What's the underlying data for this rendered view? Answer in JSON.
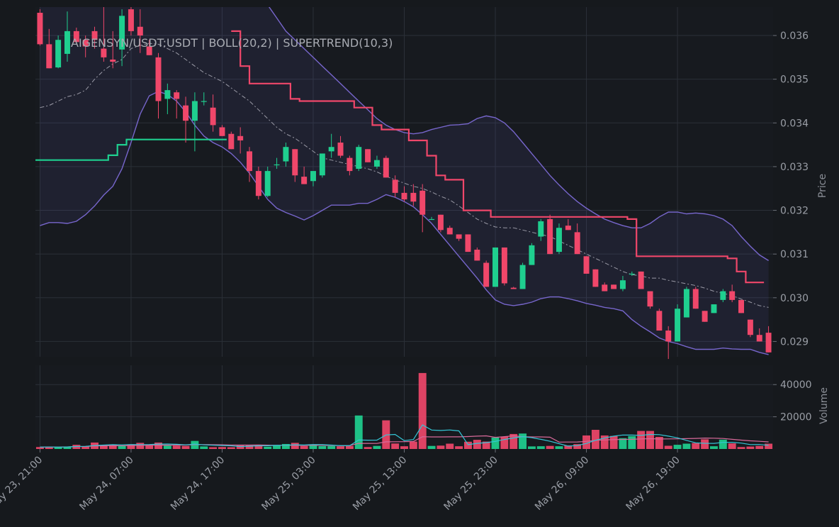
{
  "chart_data": {
    "type": "candlestick",
    "title": "AIGENSYN/USDT:USDT | BOLL(20,2) | SUPERTREND(10,3)",
    "price_axis_label": "Price",
    "volume_axis_label": "Volume",
    "price_ylim": [
      0.02865,
      0.03665
    ],
    "volume_ylim": [
      0,
      52000
    ],
    "price_ticks": [
      "0.029",
      "0.030",
      "0.031",
      "0.032",
      "0.033",
      "0.034",
      "0.035",
      "0.036"
    ],
    "volume_ticks": [
      "20000",
      "40000"
    ],
    "x_tick_labels": [
      "May 23, 21:00",
      "May 24, 07:00",
      "May 24, 17:00",
      "May 25, 03:00",
      "May 25, 13:00",
      "May 25, 23:00",
      "May 26, 09:00",
      "May 26, 19:00"
    ],
    "interval": "1h",
    "grid": true,
    "colors": {
      "up": "#1fcf8f",
      "down": "#f0476a",
      "boll_band": "#7766cc",
      "boll_mid": "#9a9aa6",
      "supertrend_up": "#1fcf8f",
      "supertrend_down": "#f0476a",
      "vol_ma1": "#34c6d6",
      "vol_ma2": "#d86a9a"
    },
    "candles": [
      [
        0.03652,
        0.0366,
        0.03577,
        0.0358
      ],
      [
        0.0358,
        0.03615,
        0.03525,
        0.03525
      ],
      [
        0.03527,
        0.036,
        0.03525,
        0.0359
      ],
      [
        0.03558,
        0.03655,
        0.0354,
        0.0361
      ],
      [
        0.0361,
        0.03618,
        0.03585,
        0.03585
      ],
      [
        0.0359,
        0.036,
        0.0355,
        0.03575
      ],
      [
        0.0361,
        0.0362,
        0.0357,
        0.0359
      ],
      [
        0.0357,
        0.03665,
        0.0354,
        0.0355
      ],
      [
        0.03545,
        0.0361,
        0.03525,
        0.0354
      ],
      [
        0.03568,
        0.0366,
        0.0353,
        0.03645
      ],
      [
        0.0366,
        0.03665,
        0.036,
        0.0361
      ],
      [
        0.0362,
        0.0366,
        0.0356,
        0.036
      ],
      [
        0.03575,
        0.0359,
        0.03555,
        0.03555
      ],
      [
        0.0355,
        0.0356,
        0.0341,
        0.0345
      ],
      [
        0.03455,
        0.0349,
        0.0342,
        0.03475
      ],
      [
        0.0347,
        0.03475,
        0.0341,
        0.03455
      ],
      [
        0.0344,
        0.0346,
        0.03355,
        0.03405
      ],
      [
        0.03405,
        0.0347,
        0.03335,
        0.0345
      ],
      [
        0.0345,
        0.0347,
        0.0344,
        0.0345
      ],
      [
        0.03435,
        0.03465,
        0.0338,
        0.03395
      ],
      [
        0.0339,
        0.03395,
        0.0337,
        0.0337
      ],
      [
        0.03375,
        0.0338,
        0.0334,
        0.0334
      ],
      [
        0.0337,
        0.0339,
        0.0333,
        0.0336
      ],
      [
        0.03335,
        0.03345,
        0.03265,
        0.0329
      ],
      [
        0.0329,
        0.033,
        0.03225,
        0.03233
      ],
      [
        0.03233,
        0.033,
        0.0323,
        0.0329
      ],
      [
        0.03305,
        0.0332,
        0.03295,
        0.03305
      ],
      [
        0.03312,
        0.03355,
        0.033,
        0.03345
      ],
      [
        0.0334,
        0.0334,
        0.03265,
        0.0328
      ],
      [
        0.03277,
        0.033,
        0.0326,
        0.0326
      ],
      [
        0.03267,
        0.0329,
        0.03255,
        0.0329
      ],
      [
        0.0328,
        0.0333,
        0.03275,
        0.0333
      ],
      [
        0.03335,
        0.03375,
        0.0332,
        0.03345
      ],
      [
        0.03355,
        0.0337,
        0.0332,
        0.03325
      ],
      [
        0.0332,
        0.03325,
        0.0328,
        0.0329
      ],
      [
        0.03295,
        0.0335,
        0.0329,
        0.03345
      ],
      [
        0.0334,
        0.0334,
        0.0331,
        0.0331
      ],
      [
        0.033,
        0.03325,
        0.03295,
        0.03315
      ],
      [
        0.0332,
        0.03325,
        0.03275,
        0.03275
      ],
      [
        0.0327,
        0.0328,
        0.0323,
        0.0324
      ],
      [
        0.0324,
        0.03255,
        0.0322,
        0.03225
      ],
      [
        0.0324,
        0.0326,
        0.0321,
        0.0322
      ],
      [
        0.03245,
        0.0326,
        0.0315,
        0.0319
      ],
      [
        0.0318,
        0.03185,
        0.0318,
        0.0318
      ],
      [
        0.0319,
        0.0319,
        0.0315,
        0.03155
      ],
      [
        0.0316,
        0.03165,
        0.03145,
        0.03145
      ],
      [
        0.03145,
        0.03145,
        0.0313,
        0.03135
      ],
      [
        0.03145,
        0.03145,
        0.03105,
        0.03105
      ],
      [
        0.0311,
        0.03115,
        0.03085,
        0.03085
      ],
      [
        0.0308,
        0.03085,
        0.03025,
        0.03025
      ],
      [
        0.03025,
        0.03115,
        0.03025,
        0.03115
      ],
      [
        0.03115,
        0.03115,
        0.03028,
        0.03033
      ],
      [
        0.03023,
        0.03025,
        0.0302,
        0.0302
      ],
      [
        0.0302,
        0.0308,
        0.0302,
        0.03075
      ],
      [
        0.03075,
        0.03125,
        0.03075,
        0.0312
      ],
      [
        0.0314,
        0.0318,
        0.0313,
        0.03175
      ],
      [
        0.0318,
        0.0319,
        0.031,
        0.031
      ],
      [
        0.03105,
        0.0317,
        0.031,
        0.0316
      ],
      [
        0.03165,
        0.0318,
        0.03155,
        0.03155
      ],
      [
        0.0315,
        0.0317,
        0.031,
        0.031
      ],
      [
        0.03095,
        0.03095,
        0.03055,
        0.03055
      ],
      [
        0.03065,
        0.03065,
        0.03025,
        0.03025
      ],
      [
        0.0303,
        0.03035,
        0.03015,
        0.03015
      ],
      [
        0.0303,
        0.0303,
        0.0302,
        0.0302
      ],
      [
        0.0302,
        0.0305,
        0.03015,
        0.0304
      ],
      [
        0.03055,
        0.0306,
        0.0305,
        0.03055
      ],
      [
        0.0306,
        0.0306,
        0.0302,
        0.0302
      ],
      [
        0.03015,
        0.03015,
        0.02975,
        0.0298
      ],
      [
        0.0297,
        0.02975,
        0.02925,
        0.02925
      ],
      [
        0.02925,
        0.02935,
        0.0286,
        0.029
      ],
      [
        0.029,
        0.02985,
        0.029,
        0.02975
      ],
      [
        0.02955,
        0.03025,
        0.02955,
        0.0302
      ],
      [
        0.0302,
        0.03025,
        0.02975,
        0.02975
      ],
      [
        0.0297,
        0.0297,
        0.02945,
        0.02945
      ],
      [
        0.02965,
        0.02985,
        0.02965,
        0.02985
      ],
      [
        0.02995,
        0.0302,
        0.0299,
        0.03015
      ],
      [
        0.03015,
        0.0303,
        0.0299,
        0.02995
      ],
      [
        0.02995,
        0.02995,
        0.02965,
        0.02965
      ],
      [
        0.0295,
        0.0295,
        0.0291,
        0.02915
      ],
      [
        0.02915,
        0.0293,
        0.029,
        0.029
      ],
      [
        0.0292,
        0.02935,
        0.02875,
        0.02875
      ]
    ],
    "volumes": [
      1200,
      1300,
      1100,
      1500,
      2600,
      1700,
      4000,
      2400,
      2700,
      1900,
      2900,
      3800,
      2600,
      4000,
      2100,
      2100,
      1900,
      5000,
      1600,
      1100,
      1200,
      1100,
      2600,
      2600,
      2500,
      1400,
      2100,
      3100,
      3800,
      1900,
      2900,
      1800,
      1800,
      1700,
      1900,
      20800,
      1200,
      1900,
      17800,
      3400,
      1700,
      4600,
      47200,
      1900,
      2100,
      3300,
      1700,
      4500,
      5700,
      4600,
      7100,
      7700,
      9300,
      9600,
      1600,
      1700,
      1900,
      1700,
      2200,
      3000,
      8400,
      11900,
      8400,
      8100,
      6700,
      8000,
      11200,
      11200,
      7500,
      2000,
      2600,
      3300,
      3700,
      6000,
      1700,
      5800,
      3500,
      1200,
      1500,
      1900,
      3300
    ],
    "boll_mid": [
      0.03435,
      0.0344,
      0.0345,
      0.0346,
      0.03465,
      0.03475,
      0.035,
      0.0352,
      0.03535,
      0.03545,
      0.0357,
      0.03577,
      0.03582,
      0.0358,
      0.0357,
      0.0356,
      0.03545,
      0.0353,
      0.03515,
      0.03505,
      0.03495,
      0.0348,
      0.03465,
      0.0345,
      0.0343,
      0.0341,
      0.0339,
      0.03375,
      0.03365,
      0.0335,
      0.03335,
      0.0332,
      0.03315,
      0.0331,
      0.03305,
      0.033,
      0.03295,
      0.03288,
      0.03278,
      0.0327,
      0.03262,
      0.03255,
      0.0325,
      0.03242,
      0.03232,
      0.03224,
      0.0321,
      0.03195,
      0.0318,
      0.0317,
      0.03162,
      0.0316,
      0.0316,
      0.03155,
      0.0315,
      0.03145,
      0.0314,
      0.0313,
      0.0312,
      0.0311,
      0.031,
      0.0309,
      0.0308,
      0.0307,
      0.0306,
      0.03053,
      0.0305,
      0.03045,
      0.03045,
      0.0304,
      0.03036,
      0.03032,
      0.03028,
      0.03022,
      0.03015,
      0.0301,
      0.03005,
      0.02997,
      0.0299,
      0.02982,
      0.02978
    ],
    "boll_upper": [
      0.03795,
      0.0381,
      0.0383,
      0.0385,
      0.0387,
      0.0389,
      0.03905,
      0.03915,
      0.0392,
      0.03925,
      0.03928,
      0.0393,
      0.03932,
      0.0393,
      0.0391,
      0.0389,
      0.0387,
      0.0385,
      0.0383,
      0.0381,
      0.0379,
      0.0377,
      0.0375,
      0.0373,
      0.037,
      0.0367,
      0.0364,
      0.0361,
      0.0359,
      0.0357,
      0.0355,
      0.0353,
      0.0351,
      0.0349,
      0.0347,
      0.0345,
      0.0343,
      0.0341,
      0.03395,
      0.03385,
      0.03378,
      0.03375,
      0.03378,
      0.03385,
      0.0339,
      0.03395,
      0.03396,
      0.03398,
      0.0341,
      0.03416,
      0.03412,
      0.034,
      0.0338,
      0.03355,
      0.0333,
      0.03305,
      0.0328,
      0.03258,
      0.03238,
      0.0322,
      0.03205,
      0.03192,
      0.0318,
      0.03172,
      0.03165,
      0.0316,
      0.0316,
      0.0317,
      0.03185,
      0.03196,
      0.03196,
      0.03192,
      0.03194,
      0.03192,
      0.03188,
      0.0318,
      0.03165,
      0.0314,
      0.03118,
      0.03098,
      0.03085
    ],
    "boll_lower": [
      0.03165,
      0.03172,
      0.03172,
      0.0317,
      0.03175,
      0.0319,
      0.0321,
      0.03235,
      0.03255,
      0.03295,
      0.03355,
      0.0342,
      0.03462,
      0.03472,
      0.03465,
      0.0345,
      0.03425,
      0.03395,
      0.0337,
      0.03355,
      0.03345,
      0.0333,
      0.0331,
      0.03285,
      0.03255,
      0.03225,
      0.03205,
      0.03195,
      0.03187,
      0.03178,
      0.03188,
      0.032,
      0.03212,
      0.03212,
      0.03212,
      0.03216,
      0.03216,
      0.03225,
      0.03236,
      0.0323,
      0.0322,
      0.03208,
      0.0319,
      0.0317,
      0.03145,
      0.0312,
      0.03095,
      0.0307,
      0.03045,
      0.03018,
      0.02995,
      0.02985,
      0.02982,
      0.02985,
      0.0299,
      0.02998,
      0.03002,
      0.03002,
      0.02998,
      0.02993,
      0.02987,
      0.02983,
      0.02978,
      0.02975,
      0.0297,
      0.0295,
      0.02935,
      0.02922,
      0.02908,
      0.029,
      0.02895,
      0.02888,
      0.02882,
      0.02882,
      0.02882,
      0.02885,
      0.02883,
      0.02882,
      0.02882,
      0.02875,
      0.0287
    ],
    "supertrend": [
      {
        "direction": "up",
        "points": [
          [
            0,
            0.03315
          ],
          [
            8,
            0.03315
          ],
          [
            8,
            0.03326
          ],
          [
            9,
            0.03326
          ],
          [
            9,
            0.0335
          ],
          [
            10,
            0.0335
          ],
          [
            10,
            0.03362
          ],
          [
            21,
            0.03362
          ]
        ]
      },
      {
        "direction": "down",
        "points": [
          [
            21.5,
            0.0361
          ],
          [
            22.5,
            0.0361
          ],
          [
            22.5,
            0.0353
          ],
          [
            23.5,
            0.0353
          ],
          [
            23.5,
            0.0349
          ],
          [
            28,
            0.0349
          ],
          [
            28,
            0.03455
          ],
          [
            29,
            0.03455
          ],
          [
            29,
            0.0345
          ],
          [
            35,
            0.0345
          ],
          [
            35,
            0.03435
          ],
          [
            37,
            0.03435
          ],
          [
            37,
            0.03395
          ],
          [
            38,
            0.03395
          ],
          [
            38,
            0.03385
          ],
          [
            41,
            0.03385
          ],
          [
            41,
            0.0336
          ],
          [
            43,
            0.0336
          ],
          [
            43,
            0.03325
          ],
          [
            44,
            0.03325
          ],
          [
            44,
            0.0328
          ],
          [
            45,
            0.0328
          ],
          [
            45,
            0.0327
          ],
          [
            47,
            0.0327
          ],
          [
            47,
            0.032
          ],
          [
            50,
            0.032
          ],
          [
            50,
            0.03185
          ],
          [
            65,
            0.03185
          ],
          [
            65,
            0.0318
          ],
          [
            66,
            0.0318
          ],
          [
            66,
            0.03095
          ],
          [
            76,
            0.03095
          ],
          [
            76,
            0.0309
          ],
          [
            77,
            0.0309
          ],
          [
            77,
            0.0306
          ],
          [
            78,
            0.0306
          ],
          [
            78,
            0.03035
          ],
          [
            80,
            0.03035
          ]
        ]
      }
    ]
  }
}
